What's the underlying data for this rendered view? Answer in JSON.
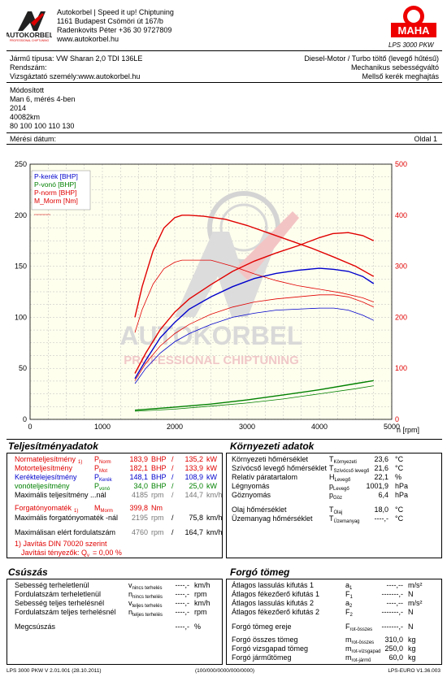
{
  "header": {
    "company_lines": [
      "Autokorbel | Speed it up! Chiptuning",
      "1161 Budapest Csömöri út 167/b",
      "Radenkovits Péter +36 30 9727809",
      "www.autokorbel.hu"
    ],
    "logo_text": "AUTOKORBEL",
    "logo_sub": "PROFESSIONAL CHIPTUNING",
    "maha_text": "MAHA",
    "maha_ring": "Maschinenbau Haldenwang",
    "lps_model": "LPS 3000 PKW"
  },
  "vehicle": {
    "left_lines": [
      "Jármű típusa:   VW Sharan 2,0 TDI 136LE",
      "Rendszám:",
      "Vizsgáztató személy:www.autokorbel.hu"
    ],
    "right_lines": [
      "Diesel-Motor / Turbo töltő (levegő hűtésű)",
      "Mechanikus sebességváltó",
      "Mellső kerék meghajtás"
    ]
  },
  "notes": [
    "Módosított",
    "Man 6, mérés 4-ben",
    "2014",
    "40082km",
    "80 100 100 110 130"
  ],
  "measure_date_label": "Mérési dátum:",
  "page_label": "Oldal 1",
  "chart_data": {
    "type": "line",
    "x_unit_label": "n [rpm]",
    "xlim": [
      0,
      5000
    ],
    "x_ticks": [
      0,
      1000,
      2000,
      3000,
      4000,
      5000
    ],
    "ylim_left": [
      0,
      250
    ],
    "y_left_ticks": [
      0,
      50,
      100,
      150,
      200,
      250
    ],
    "ylim_right": [
      0,
      500
    ],
    "y_right_ticks": [
      0,
      100,
      200,
      300,
      400,
      500
    ],
    "legend": [
      "P-kerék [BHP]",
      "P-vonó [BHP]",
      "P-norm [BHP]",
      "M_Morm [Nm]"
    ],
    "legend_colors": [
      "#0000cc",
      "#008000",
      "#e00000",
      "#e00000"
    ],
    "series": [
      {
        "name": "P-kerék [BHP]",
        "color": "#0000cc",
        "axis": "left",
        "x": [
          1450,
          1600,
          1800,
          2000,
          2200,
          2500,
          2800,
          3100,
          3400,
          3700,
          4000,
          4200,
          4400,
          4600,
          4750
        ],
        "y": [
          40,
          58,
          80,
          95,
          108,
          120,
          130,
          138,
          143,
          146,
          148,
          147,
          145,
          140,
          133
        ]
      },
      {
        "name": "P-kerék [BHP] (stock)",
        "color": "#0000cc",
        "axis": "left",
        "thin": true,
        "x": [
          1450,
          1600,
          1800,
          2000,
          2200,
          2500,
          2800,
          3100,
          3400,
          3700,
          4000,
          4200,
          4400,
          4600,
          4750
        ],
        "y": [
          35,
          50,
          65,
          76,
          84,
          93,
          100,
          104,
          107,
          108,
          109,
          109,
          107,
          102,
          97
        ]
      },
      {
        "name": "P-vonó [BHP]",
        "color": "#008000",
        "axis": "left",
        "x": [
          1450,
          2000,
          2500,
          3000,
          3500,
          4000,
          4500,
          4750
        ],
        "y": [
          9,
          12,
          15,
          19,
          24,
          29,
          35,
          38
        ]
      },
      {
        "name": "P-vonó [BHP] (stock)",
        "color": "#008000",
        "axis": "left",
        "thin": true,
        "x": [
          1450,
          2000,
          2500,
          3000,
          3500,
          4000,
          4500,
          4750
        ],
        "y": [
          8,
          10,
          13,
          16,
          20,
          25,
          30,
          33
        ]
      },
      {
        "name": "P-norm [BHP]",
        "color": "#e00000",
        "axis": "left",
        "x": [
          1450,
          1600,
          1800,
          2000,
          2200,
          2500,
          2800,
          3100,
          3400,
          3700,
          4000,
          4185,
          4400,
          4600,
          4750
        ],
        "y": [
          45,
          65,
          88,
          105,
          118,
          132,
          145,
          155,
          163,
          170,
          178,
          182,
          183,
          180,
          175
        ]
      },
      {
        "name": "P-norm [BHP] (stock)",
        "color": "#e00000",
        "axis": "left",
        "thin": true,
        "x": [
          1450,
          1600,
          1800,
          2000,
          2200,
          2500,
          2800,
          3100,
          3400,
          3700,
          4000,
          4200,
          4400,
          4600,
          4750
        ],
        "y": [
          38,
          55,
          72,
          84,
          93,
          103,
          110,
          115,
          118,
          120,
          122,
          122,
          120,
          115,
          110
        ]
      },
      {
        "name": "M_Morm [Nm]",
        "color": "#e00000",
        "axis": "right",
        "x": [
          1450,
          1550,
          1700,
          1850,
          2000,
          2100,
          2195,
          2400,
          2700,
          3000,
          3300,
          3600,
          3900,
          4200,
          4500,
          4750
        ],
        "y": [
          200,
          260,
          330,
          375,
          395,
          400,
          400,
          398,
          392,
          380,
          365,
          350,
          335,
          318,
          300,
          280
        ]
      },
      {
        "name": "M_Morm [Nm] (stock)",
        "color": "#e00000",
        "axis": "right",
        "thin": true,
        "x": [
          1450,
          1550,
          1700,
          1850,
          2000,
          2100,
          2200,
          2500,
          2800,
          3100,
          3400,
          3700,
          4000,
          4300,
          4600,
          4750
        ],
        "y": [
          170,
          215,
          265,
          295,
          308,
          312,
          312,
          312,
          300,
          285,
          272,
          262,
          255,
          248,
          238,
          230
        ]
      }
    ]
  },
  "performance": {
    "title": "Teljesítményadatok",
    "rows": [
      {
        "label": "Normateljesítmény",
        "note": "1)",
        "sym": "P",
        "symsub": "Norm",
        "v1": "183,9",
        "u1": "BHP",
        "sep": "/",
        "v2": "135,2",
        "u2": "kW",
        "color": "red"
      },
      {
        "label": "Motorteljesítmény",
        "note": "",
        "sym": "P",
        "symsub": "Mot",
        "v1": "182,1",
        "u1": "BHP",
        "sep": "/",
        "v2": "133,9",
        "u2": "kW",
        "color": "red"
      },
      {
        "label": "Keréktelejesítmény",
        "note": "",
        "sym": "P",
        "symsub": "Kerék",
        "v1": "148,1",
        "u1": "BHP",
        "sep": "/",
        "v2": "108,9",
        "u2": "kW",
        "color": "blue"
      },
      {
        "label": "vonóteljesítmény",
        "note": "",
        "sym": "P",
        "symsub": "vonó",
        "v1": "34,0",
        "u1": "BHP",
        "sep": "/",
        "v2": "25,0",
        "u2": "kW",
        "color": "green"
      },
      {
        "label": "Maximális teljesítmény ...nál",
        "note": "",
        "sym": "",
        "symsub": "",
        "v1": "4185",
        "u1": "rpm",
        "sep": "/",
        "v2": "144,7",
        "u2": "km/h",
        "color": "grey"
      }
    ],
    "torque_row": {
      "label": "Forgatónyomaték",
      "note": "1)",
      "sym": "M",
      "symsub": "Morm",
      "v1": "399,8",
      "u1": "Nm"
    },
    "rows2": [
      {
        "label": "Maximális forgatónyomaték -nál",
        "v1": "2195",
        "u1": "rpm",
        "sep": "/",
        "v2": "75,8",
        "u2": "km/h"
      },
      {
        "label": "Maximálisan elért fordulatszám",
        "v1": "4760",
        "u1": "rpm",
        "sep": "/",
        "v2": "164,7",
        "u2": "km/h"
      }
    ],
    "din_line": "1) Javítás DIN 70020 szerint",
    "factor_line": "Javítási tényezők: Q",
    "factor_sub": "v",
    "factor_value": "=   0,00 %"
  },
  "environment": {
    "title": "Környezeti adatok",
    "rows": [
      {
        "label": "Környezeti hőmérséklet",
        "sym": "T",
        "symsub": "Környezeti",
        "val": "23,6",
        "unit": "°C"
      },
      {
        "label": "Szívócső levegő hőmérséklet",
        "sym": "T",
        "symsub": "Szívócső levegő",
        "val": "21,6",
        "unit": "°C"
      },
      {
        "label": "Relatív páratartalom",
        "sym": "H",
        "symsub": "Levegő",
        "val": "22,1",
        "unit": "%"
      },
      {
        "label": "Légnyomás",
        "sym": "p",
        "symsub": "Levegő",
        "val": "1001,9",
        "unit": "hPa"
      },
      {
        "label": "Göznyomás",
        "sym": "p",
        "symsub": "Göz",
        "val": "6,4",
        "unit": "hPa"
      },
      {
        "label": "Olaj hőmérséklet",
        "sym": "T",
        "symsub": "Olaj",
        "val": "18,0",
        "unit": "°C"
      },
      {
        "label": "Üzemanyag hőmérséklet",
        "sym": "T",
        "symsub": "Üzemanyag",
        "val": "----,-",
        "unit": "°C"
      }
    ]
  },
  "slip": {
    "title": "Csúszás",
    "rows": [
      {
        "label": "Sebesség terheletlenül",
        "sym": "v",
        "symsub": "nincs terhelés",
        "val": "----,-",
        "unit": "km/h"
      },
      {
        "label": "Fordulatszám terheletlenül",
        "sym": "n",
        "symsub": "nincs terhelés",
        "val": "----,-",
        "unit": "rpm"
      },
      {
        "label": "Sebesség teljes terhelésnél",
        "sym": "v",
        "symsub": "teljes terhelés",
        "val": "----,-",
        "unit": "km/h"
      },
      {
        "label": "Fordulatszám teljes terhelésnél",
        "sym": "n",
        "symsub": "teljes terhelés",
        "val": "----,-",
        "unit": "rpm"
      },
      {
        "label": "Megcsúszás",
        "sym": "",
        "symsub": "",
        "val": "----,-",
        "unit": "%"
      }
    ]
  },
  "rotating_mass": {
    "title": "Forgó tömeg",
    "rows": [
      {
        "label": "Átlagos lassulás kifutás 1",
        "sym": "a",
        "symsub": "1",
        "val": "----,--",
        "unit": "m/s²"
      },
      {
        "label": "Átlagos fékezőerő kifutás 1",
        "sym": "F",
        "symsub": "1",
        "val": "-------,-",
        "unit": "N"
      },
      {
        "label": "Átlagos lassulás kifutás 2",
        "sym": "a",
        "symsub": "2",
        "val": "----,--",
        "unit": "m/s²"
      },
      {
        "label": "Átlagos fékezőerő kifutás 2",
        "sym": "F",
        "symsub": "2",
        "val": "-------,-",
        "unit": "N"
      },
      {
        "label": "Forgó tömeg ereje",
        "sym": "F",
        "symsub": "rot-összes",
        "val": "-------,-",
        "unit": "N"
      },
      {
        "label": "Forgó összes tömeg",
        "sym": "m",
        "symsub": "rot-összes",
        "val": "310,0",
        "unit": "kg"
      },
      {
        "label": "Forgó vizsgapad tömeg",
        "sym": "m",
        "symsub": "rot-vizsgapad",
        "val": "250,0",
        "unit": "kg"
      },
      {
        "label": "Forgó járműtömeg",
        "sym": "m",
        "symsub": "rot-jármű",
        "val": "60,0",
        "unit": "kg"
      }
    ]
  },
  "footer": {
    "left": "LPS 3000 PKW V 2.01.001 (28.10.2011)",
    "center": "(100/000/0000/000/0000)",
    "right": "LPS-EURO V1.36.003"
  },
  "colors": {
    "red": "#e00000",
    "blue": "#0000cc",
    "green": "#008000",
    "grey": "#777777",
    "chart_bg": "#ffffee",
    "grid": "#bbbbbb"
  }
}
